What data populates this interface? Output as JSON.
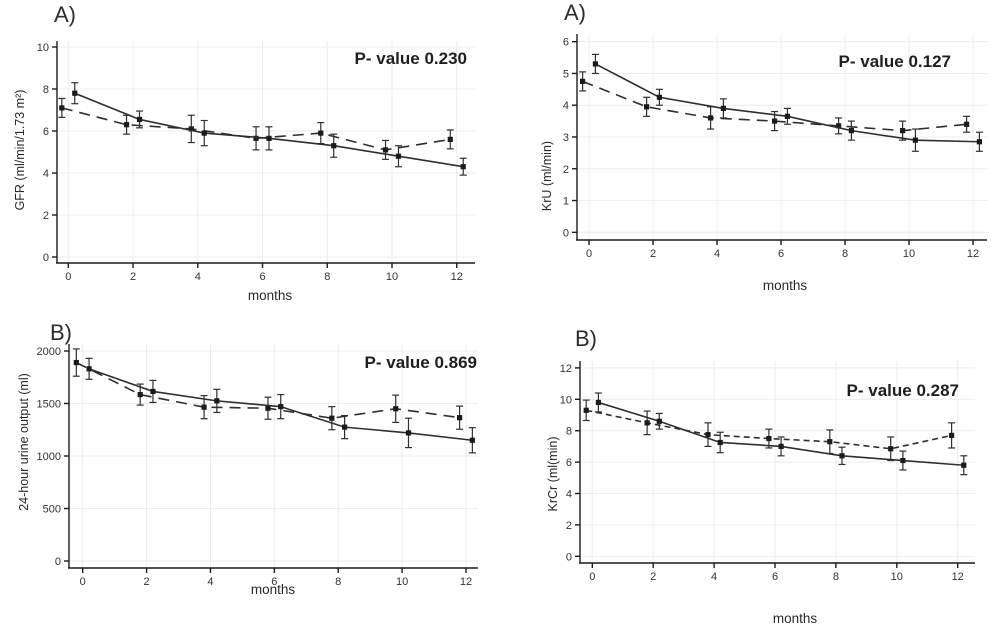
{
  "figure": {
    "background": "#ffffff",
    "line_color": "#2f2f2f",
    "marker_color": "#1b1b1b",
    "grid_color": "#ececec",
    "axis_color": "#1c1c1c",
    "text_color": "#2a2a2a"
  },
  "chart_data": [
    {
      "type": "line",
      "panel": "top-left",
      "letter": "A)",
      "annotation": "P- value 0.230",
      "xlabel": "months",
      "ylabel": "GFR (ml/min/1.73 m²)",
      "xlim": [
        -0.5,
        12.6
      ],
      "ylim": [
        0,
        10
      ],
      "xticks": [
        0,
        2,
        4,
        6,
        8,
        10,
        12
      ],
      "yticks": [
        0,
        2,
        4,
        6,
        8,
        10
      ],
      "grid": true,
      "legend": "none",
      "error_bars": true,
      "series": [
        {
          "name": "dashed",
          "style": "dashed",
          "dash": "11 7",
          "x": [
            -0.2,
            1.8,
            3.8,
            5.8,
            7.8,
            9.8,
            11.8
          ],
          "y": [
            7.1,
            6.3,
            6.1,
            5.65,
            5.9,
            5.1,
            5.6
          ],
          "err": [
            0.45,
            0.45,
            0.65,
            0.55,
            0.5,
            0.45,
            0.45
          ]
        },
        {
          "name": "solid",
          "style": "solid",
          "dash": "",
          "x": [
            0.2,
            2.2,
            4.2,
            6.2,
            8.2,
            10.2,
            12.2
          ],
          "y": [
            7.8,
            6.55,
            5.9,
            5.65,
            5.3,
            4.8,
            4.3
          ],
          "err": [
            0.5,
            0.4,
            0.6,
            0.55,
            0.55,
            0.5,
            0.4
          ]
        }
      ]
    },
    {
      "type": "line",
      "panel": "top-right",
      "letter": "A)",
      "annotation": "P- value 0.127",
      "xlabel": "months",
      "ylabel": "KrU (ml/min)",
      "xlim": [
        -0.5,
        12.6
      ],
      "ylim": [
        0,
        6
      ],
      "xticks": [
        0,
        2,
        4,
        6,
        8,
        10,
        12
      ],
      "yticks": [
        0,
        1,
        2,
        3,
        4,
        5,
        6
      ],
      "grid": true,
      "legend": "none",
      "error_bars": true,
      "series": [
        {
          "name": "dashed",
          "style": "dashed",
          "dash": "11 7",
          "x": [
            -0.2,
            1.8,
            3.8,
            5.8,
            7.8,
            9.8,
            11.8
          ],
          "y": [
            4.75,
            3.95,
            3.6,
            3.5,
            3.35,
            3.2,
            3.4
          ],
          "err": [
            0.3,
            0.3,
            0.35,
            0.3,
            0.25,
            0.3,
            0.25
          ]
        },
        {
          "name": "solid",
          "style": "solid",
          "dash": "",
          "x": [
            0.2,
            2.2,
            4.2,
            6.2,
            8.2,
            10.2,
            12.2
          ],
          "y": [
            5.3,
            4.25,
            3.9,
            3.65,
            3.2,
            2.9,
            2.85
          ],
          "err": [
            0.3,
            0.25,
            0.3,
            0.25,
            0.3,
            0.35,
            0.3
          ]
        }
      ]
    },
    {
      "type": "line",
      "panel": "bottom-left",
      "letter": "B)",
      "annotation": "P- value 0.869",
      "xlabel": "months",
      "ylabel": "24-hour urine output (ml)",
      "xlim": [
        -0.5,
        12.6
      ],
      "ylim": [
        0,
        2000
      ],
      "xticks": [
        0,
        2,
        4,
        6,
        8,
        10,
        12
      ],
      "yticks": [
        0,
        500,
        1000,
        1500,
        2000
      ],
      "grid": true,
      "legend": "none",
      "error_bars": true,
      "series": [
        {
          "name": "dashed",
          "style": "dashed",
          "dash": "11 7",
          "x": [
            -0.2,
            1.8,
            3.8,
            5.8,
            7.8,
            9.8,
            11.8
          ],
          "y": [
            1890,
            1585,
            1465,
            1455,
            1360,
            1450,
            1365
          ],
          "err": [
            130,
            100,
            110,
            105,
            110,
            130,
            110
          ]
        },
        {
          "name": "solid",
          "style": "solid",
          "dash": "",
          "x": [
            0.2,
            2.2,
            4.2,
            6.2,
            8.2,
            10.2,
            12.2
          ],
          "y": [
            1830,
            1615,
            1525,
            1470,
            1275,
            1220,
            1150
          ],
          "err": [
            100,
            105,
            110,
            115,
            110,
            140,
            120
          ]
        }
      ]
    },
    {
      "type": "line",
      "panel": "bottom-right",
      "letter": "B)",
      "annotation": "P- value 0.287",
      "xlabel": "months",
      "ylabel": "KrCr (ml(min)",
      "xlim": [
        -0.5,
        12.6
      ],
      "ylim": [
        0,
        12
      ],
      "xticks": [
        0,
        2,
        4,
        6,
        8,
        10,
        12
      ],
      "yticks": [
        0,
        2,
        4,
        6,
        8,
        10,
        12
      ],
      "grid": true,
      "legend": "none",
      "error_bars": true,
      "series": [
        {
          "name": "dashed",
          "style": "dashed",
          "dash": "6 4",
          "x": [
            -0.2,
            1.8,
            3.8,
            5.8,
            7.8,
            9.8,
            11.8
          ],
          "y": [
            9.3,
            8.5,
            7.75,
            7.5,
            7.3,
            6.85,
            7.7
          ],
          "err": [
            0.65,
            0.75,
            0.75,
            0.6,
            0.75,
            0.75,
            0.8
          ]
        },
        {
          "name": "solid",
          "style": "solid",
          "dash": "",
          "x": [
            0.2,
            2.2,
            4.2,
            6.2,
            8.2,
            10.2,
            12.2
          ],
          "y": [
            9.8,
            8.6,
            7.25,
            7.0,
            6.4,
            6.1,
            5.8
          ],
          "err": [
            0.6,
            0.5,
            0.65,
            0.6,
            0.55,
            0.6,
            0.6
          ]
        }
      ]
    }
  ]
}
